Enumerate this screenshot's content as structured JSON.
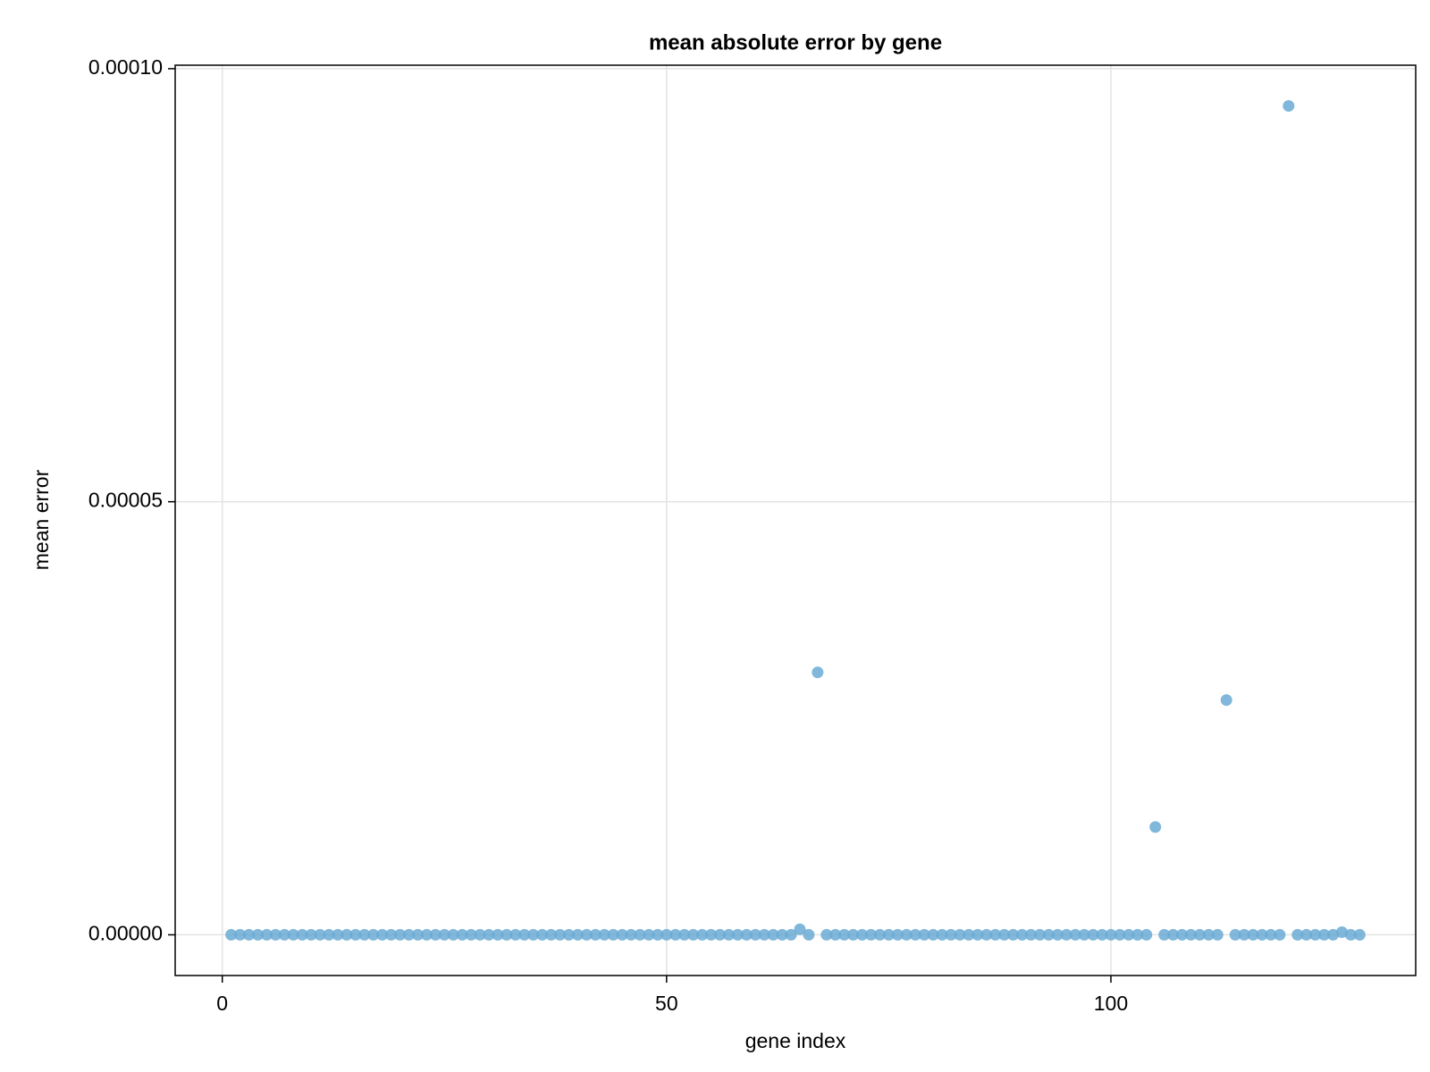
{
  "chart_data": {
    "type": "scatter",
    "title": "mean absolute error by gene",
    "x_label": "gene index",
    "y_label": "mean error",
    "color": "#6aaad3",
    "grid": true,
    "xlim": [
      -5.3,
      134.3
    ],
    "ylim": [
      -4.7e-06,
      0.0001004
    ],
    "xticks": [
      0,
      50,
      100
    ],
    "yticks": [
      {
        "value": 0,
        "label": "0.00000"
      },
      {
        "value": 5e-05,
        "label": "0.00005"
      },
      {
        "value": 0.0001,
        "label": "0.00010"
      }
    ],
    "x": [
      1,
      2,
      3,
      4,
      5,
      6,
      7,
      8,
      9,
      10,
      11,
      12,
      13,
      14,
      15,
      16,
      17,
      18,
      19,
      20,
      21,
      22,
      23,
      24,
      25,
      26,
      27,
      28,
      29,
      30,
      31,
      32,
      33,
      34,
      35,
      36,
      37,
      38,
      39,
      40,
      41,
      42,
      43,
      44,
      45,
      46,
      47,
      48,
      49,
      50,
      51,
      52,
      53,
      54,
      55,
      56,
      57,
      58,
      59,
      60,
      61,
      62,
      63,
      64,
      65,
      66,
      67,
      68,
      69,
      70,
      71,
      72,
      73,
      74,
      75,
      76,
      77,
      78,
      79,
      80,
      81,
      82,
      83,
      84,
      85,
      86,
      87,
      88,
      89,
      90,
      91,
      92,
      93,
      94,
      95,
      96,
      97,
      98,
      99,
      100,
      101,
      102,
      103,
      104,
      105,
      106,
      107,
      108,
      109,
      110,
      111,
      112,
      113,
      114,
      115,
      116,
      117,
      118,
      119,
      120,
      121,
      122,
      123,
      124,
      125,
      126,
      127,
      128
    ],
    "values": [
      0,
      0,
      0,
      0,
      0,
      0,
      0,
      0,
      0,
      0,
      0,
      0,
      0,
      0,
      0,
      0,
      0,
      0,
      0,
      0,
      0,
      0,
      0,
      0,
      0,
      0,
      0,
      0,
      0,
      0,
      0,
      0,
      0,
      0,
      0,
      0,
      0,
      0,
      0,
      0,
      0,
      0,
      0,
      0,
      0,
      0,
      0,
      0,
      0,
      0,
      0,
      0,
      0,
      0,
      0,
      0,
      0,
      0,
      0,
      0,
      0,
      0,
      0,
      0,
      6.4e-07,
      0,
      3.03e-05,
      0,
      0,
      0,
      0,
      0,
      0,
      0,
      0,
      0,
      0,
      0,
      0,
      0,
      0,
      0,
      0,
      0,
      0,
      0,
      0,
      0,
      0,
      0,
      0,
      0,
      0,
      0,
      0,
      0,
      0,
      0,
      0,
      0,
      0,
      0,
      0,
      0,
      1.245e-05,
      0,
      0,
      0,
      0,
      0,
      0,
      0,
      2.71e-05,
      0,
      0,
      0,
      0,
      0,
      0,
      9.57e-05,
      0,
      0,
      0,
      0,
      0,
      3e-07,
      0,
      0
    ]
  }
}
